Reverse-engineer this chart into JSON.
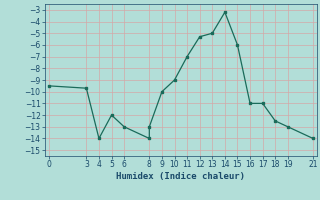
{
  "xy_pairs": [
    [
      0,
      -9.5
    ],
    [
      3,
      -9.7
    ],
    [
      4,
      -14
    ],
    [
      5,
      -12
    ],
    [
      6,
      -13
    ],
    [
      8,
      -14
    ],
    [
      8,
      -13
    ],
    [
      9,
      -10
    ],
    [
      10,
      -9
    ],
    [
      11,
      -7
    ],
    [
      12,
      -5.3
    ],
    [
      13,
      -5
    ],
    [
      14,
      -3.2
    ],
    [
      15,
      -6
    ],
    [
      16,
      -11
    ],
    [
      17,
      -11
    ],
    [
      18,
      -12.5
    ],
    [
      19,
      -13
    ],
    [
      21,
      -14
    ]
  ],
  "xticks": [
    0,
    3,
    4,
    5,
    6,
    8,
    9,
    10,
    11,
    12,
    13,
    14,
    15,
    16,
    17,
    18,
    19,
    21
  ],
  "yticks": [
    -3,
    -4,
    -5,
    -6,
    -7,
    -8,
    -9,
    -10,
    -11,
    -12,
    -13,
    -14,
    -15
  ],
  "xlim": [
    -0.3,
    21.3
  ],
  "ylim": [
    -15.5,
    -2.5
  ],
  "line_color": "#1a6b5a",
  "bg_color": "#b2ded8",
  "grid_color": "#d4a8a8",
  "xlabel": "Humidex (Indice chaleur)",
  "tick_color": "#1a4a6a",
  "label_color": "#1a4a6a"
}
